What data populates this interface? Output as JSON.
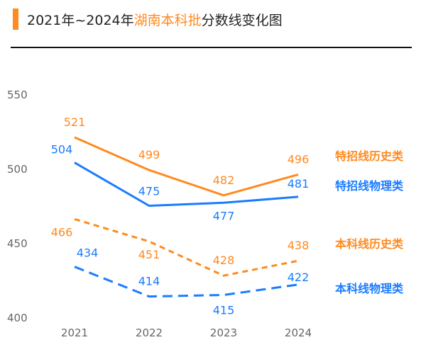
{
  "title": {
    "part1": "2021年~2024年",
    "highlight": "湖南本科批",
    "part2": "分数线变化图"
  },
  "colors": {
    "orange": "#ff8a1f",
    "blue": "#1a7cff",
    "accent_bar": "#ff8a1f"
  },
  "chart_data": {
    "type": "line",
    "categories": [
      "2021",
      "2022",
      "2023",
      "2024"
    ],
    "ylim": [
      400,
      550
    ],
    "yticks": [
      "400",
      "450",
      "500",
      "550"
    ],
    "grid": false,
    "legend": "right, labels at line ends",
    "series": [
      {
        "name": "特招线历史类",
        "values": [
          521,
          499,
          482,
          496
        ],
        "color": "#ff8a1f",
        "style": "solid"
      },
      {
        "name": "特招线物理类",
        "values": [
          504,
          475,
          477,
          481
        ],
        "color": "#1a7cff",
        "style": "solid"
      },
      {
        "name": "本科线历史类",
        "values": [
          466,
          451,
          428,
          438
        ],
        "color": "#ff8a1f",
        "style": "dashed"
      },
      {
        "name": "本科线物理类",
        "values": [
          434,
          414,
          415,
          422
        ],
        "color": "#1a7cff",
        "style": "dashed"
      }
    ]
  }
}
